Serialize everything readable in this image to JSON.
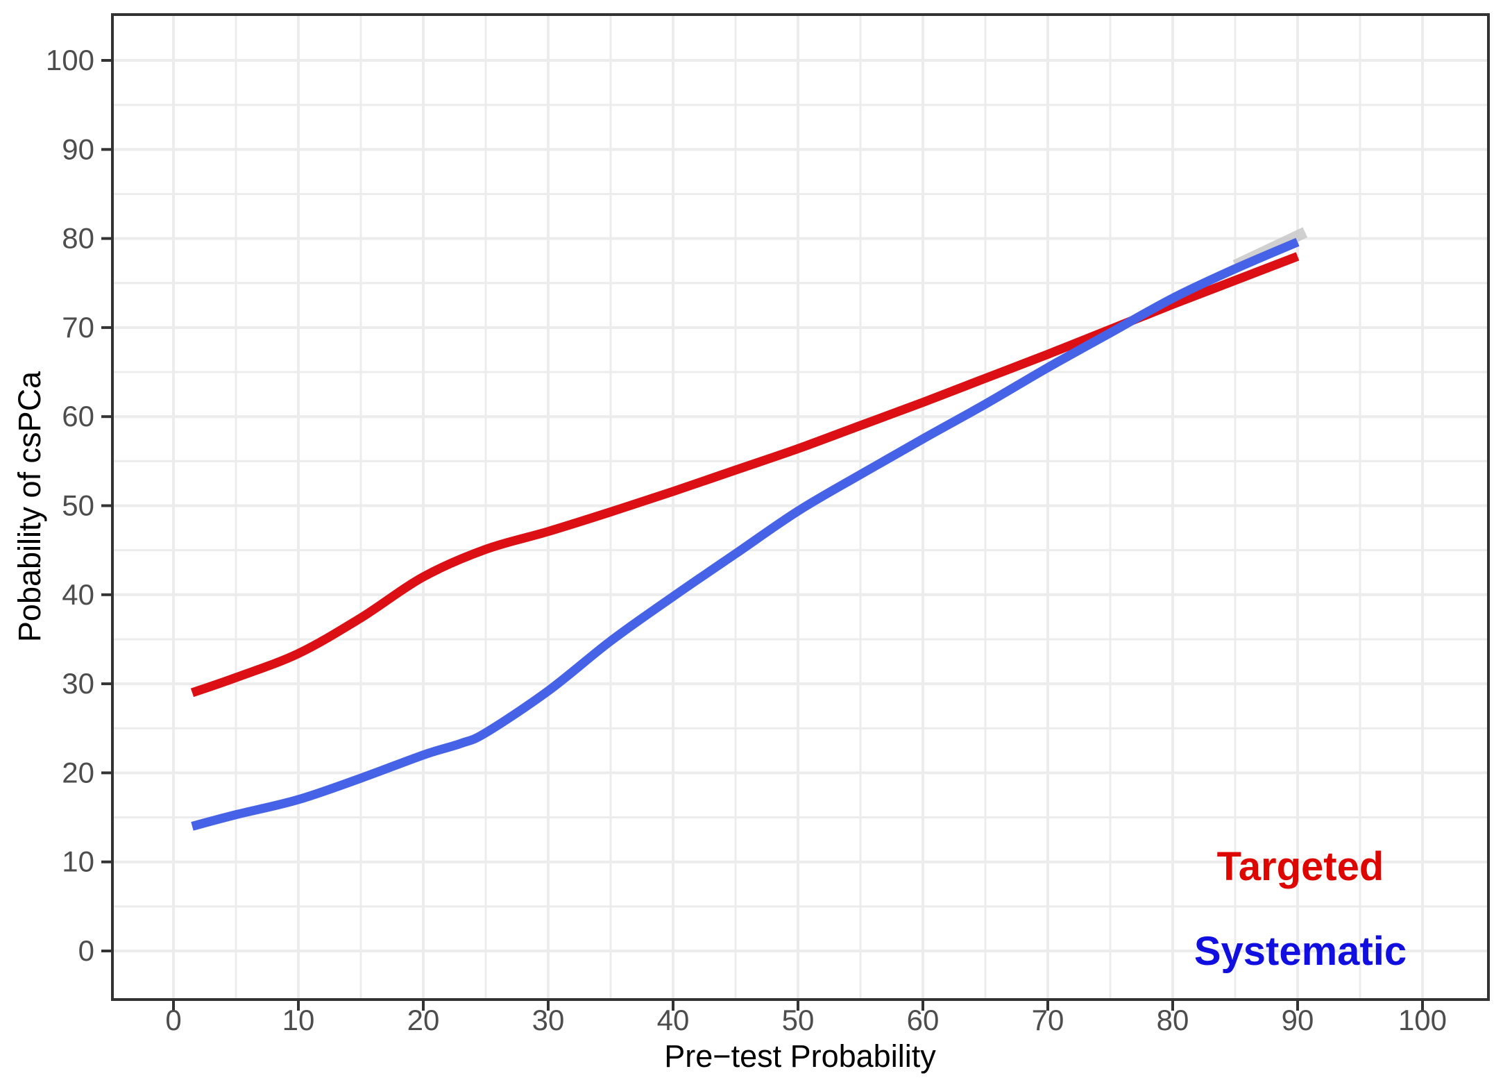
{
  "chart_data": {
    "type": "line",
    "title": "",
    "xlabel": "Pre−test Probability",
    "ylabel": "Pobability of csPCa",
    "xlim": [
      -5,
      105
    ],
    "ylim": [
      -5,
      105
    ],
    "x_ticks": [
      0,
      10,
      20,
      30,
      40,
      50,
      60,
      70,
      80,
      90,
      100
    ],
    "y_ticks": [
      0,
      10,
      20,
      30,
      40,
      50,
      60,
      70,
      80,
      90,
      100
    ],
    "grid": {
      "on": true,
      "minor_step": 5,
      "major_step": 10
    },
    "legend_position": "inside-bottom-right-text-annotations",
    "series": [
      {
        "name": "Targeted",
        "line_color": "#DC1014",
        "label_color": "#DE0600",
        "x": [
          1.5,
          5,
          10,
          15,
          20,
          25,
          30,
          35,
          40,
          45,
          50,
          55,
          60,
          65,
          70,
          75,
          80,
          85,
          90
        ],
        "y": [
          29,
          30.7,
          33.4,
          37.4,
          42,
          45.1,
          47.1,
          49.3,
          51.6,
          54,
          56.4,
          59,
          61.6,
          64.3,
          67,
          69.8,
          72.6,
          75.3,
          78
        ]
      },
      {
        "name": "Systematic",
        "line_color": "#4663E8",
        "label_color": "#100FE0",
        "x": [
          1.5,
          5,
          10,
          15,
          20,
          23,
          25,
          30,
          35,
          40,
          45,
          50,
          55,
          60,
          65,
          70,
          75,
          80,
          85,
          90
        ],
        "y": [
          14,
          15.3,
          17,
          19.4,
          22,
          23.3,
          24.5,
          29.2,
          34.8,
          39.8,
          44.6,
          49.4,
          53.5,
          57.5,
          61.4,
          65.5,
          69.4,
          73.3,
          76.6,
          79.6
        ]
      }
    ],
    "ci_ribbon": {
      "visible": true,
      "series": "Systematic",
      "color": "#c8c8c8"
    },
    "colors": {
      "panel_border": "#333333",
      "tick_mark": "#333333",
      "tick_label": "#4d4d4d",
      "axis_title": "#000000",
      "gridline": "#ececec",
      "background": "#ffffff"
    }
  }
}
